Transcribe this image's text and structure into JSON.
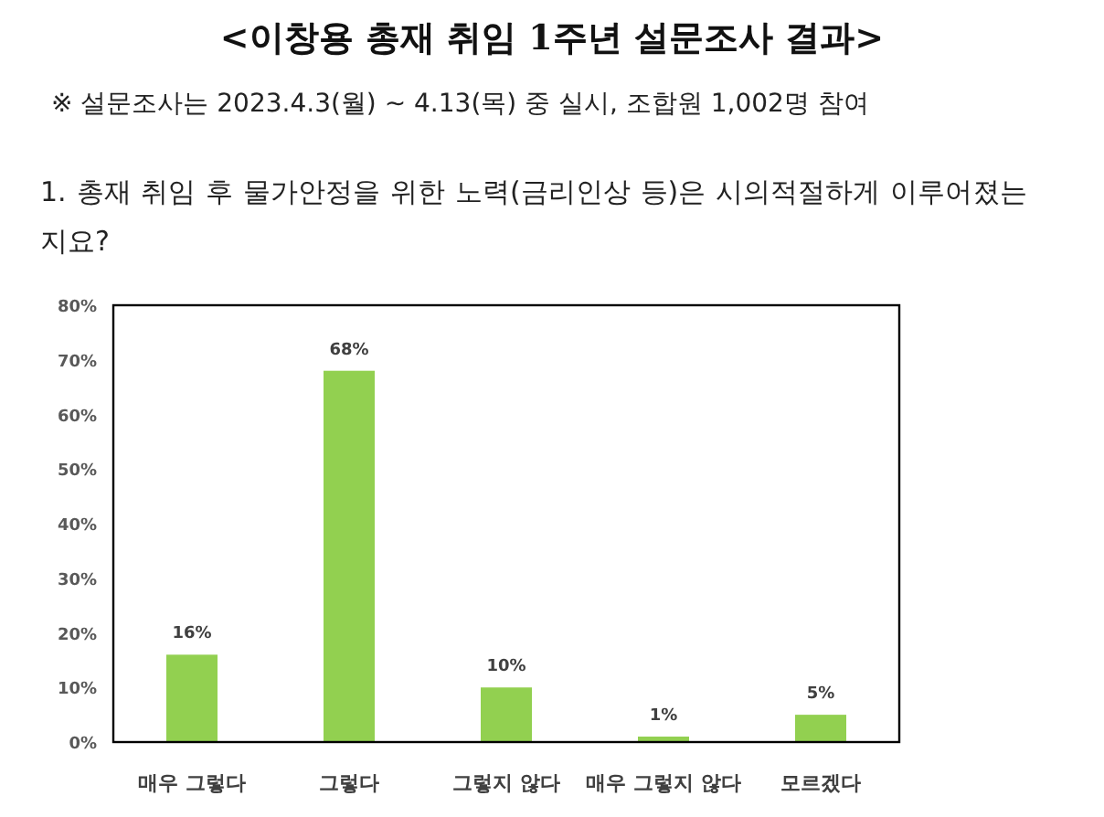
{
  "chart_data": {
    "type": "bar",
    "title": "<이창용 총재 취임 1주년 설문조사 결과>",
    "subtitle": "※ 설문조사는 2023.4.3(월) ~ 4.13(목) 중 실시, 조합원 1,002명 참여",
    "annotations": [
      "1. 총재 취임 후 물가안정을 위한 노력(금리인상 등)은 시의적절하게 이루어졌는지요?"
    ],
    "categories": [
      "매우 그렇다",
      "그렇다",
      "그렇지 않다",
      "매우 그렇지 않다",
      "모르겠다"
    ],
    "values": [
      16,
      68,
      10,
      1,
      5
    ],
    "value_labels": [
      "16%",
      "68%",
      "10%",
      "1%",
      "5%"
    ],
    "color": "#92d050",
    "ylim": [
      0,
      80
    ],
    "yticks": [
      {
        "value": 0,
        "label": "0%"
      },
      {
        "value": 10,
        "label": "10%"
      },
      {
        "value": 20,
        "label": "20%"
      },
      {
        "value": 30,
        "label": "30%"
      },
      {
        "value": 40,
        "label": "40%"
      },
      {
        "value": 50,
        "label": "50%"
      },
      {
        "value": 60,
        "label": "60%"
      },
      {
        "value": 70,
        "label": "70%"
      },
      {
        "value": 80,
        "label": "80%"
      }
    ],
    "grid": false
  }
}
